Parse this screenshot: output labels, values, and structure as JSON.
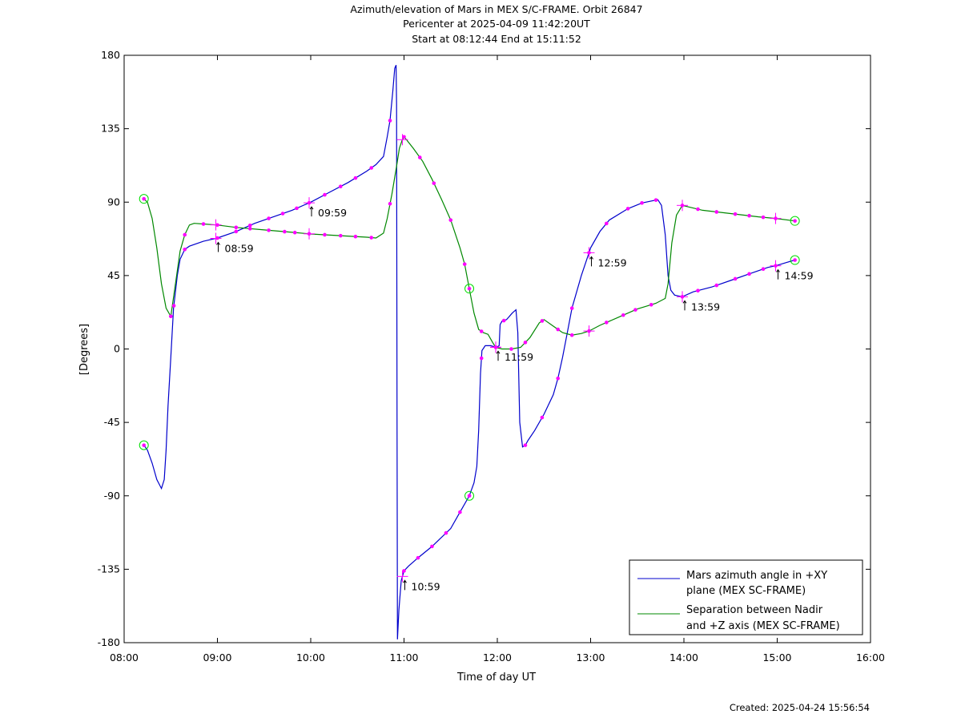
{
  "title_lines": [
    "Azimuth/elevation of Mars in MEX S/C-FRAME.  Orbit 26847",
    "Pericenter at 2025-04-09 11:42:20UT",
    "Start at 08:12:44 End at 15:11:52"
  ],
  "footer": "Created: 2025-04-24 15:56:54",
  "colors": {
    "azimuth": "#0000cc",
    "separation": "#008800",
    "markers": "#ff00ff",
    "endpoints": "#00dd00"
  },
  "chart_data": {
    "type": "line",
    "xlabel": "Time of day UT",
    "ylabel": "[Degrees]",
    "x_unit": "hours of day UT",
    "xlim": [
      8,
      16
    ],
    "ylim": [
      -180,
      180
    ],
    "x_ticks": [
      {
        "v": 8,
        "label": "08:00"
      },
      {
        "v": 9,
        "label": "09:00"
      },
      {
        "v": 10,
        "label": "10:00"
      },
      {
        "v": 11,
        "label": "11:00"
      },
      {
        "v": 12,
        "label": "12:00"
      },
      {
        "v": 13,
        "label": "13:00"
      },
      {
        "v": 14,
        "label": "14:00"
      },
      {
        "v": 15,
        "label": "15:00"
      },
      {
        "v": 16,
        "label": "16:00"
      }
    ],
    "y_ticks": [
      180,
      135,
      90,
      45,
      0,
      -45,
      -90,
      -135,
      -180
    ],
    "legend_position": "bottom-right",
    "series": [
      {
        "name": "Mars azimuth angle in +XY plane (MEX SC-FRAME)",
        "legend_lines": [
          "Mars azimuth angle in +XY",
          "plane (MEX SC-FRAME)"
        ],
        "color": "#0000cc",
        "points": [
          [
            8.212,
            -59
          ],
          [
            8.25,
            -62
          ],
          [
            8.3,
            -70
          ],
          [
            8.35,
            -80
          ],
          [
            8.4,
            -85.5
          ],
          [
            8.43,
            -80
          ],
          [
            8.45,
            -62
          ],
          [
            8.47,
            -35
          ],
          [
            8.5,
            -5
          ],
          [
            8.53,
            25
          ],
          [
            8.57,
            45
          ],
          [
            8.6,
            55
          ],
          [
            8.65,
            61
          ],
          [
            8.7,
            63
          ],
          [
            8.85,
            66
          ],
          [
            9.0,
            68
          ],
          [
            9.2,
            72
          ],
          [
            9.4,
            77
          ],
          [
            9.6,
            81
          ],
          [
            9.8,
            85
          ],
          [
            10.0,
            90
          ],
          [
            10.2,
            96
          ],
          [
            10.4,
            102
          ],
          [
            10.6,
            109
          ],
          [
            10.7,
            113
          ],
          [
            10.78,
            118
          ],
          [
            10.82,
            130
          ],
          [
            10.85,
            140
          ],
          [
            10.88,
            158
          ],
          [
            10.9,
            172
          ],
          [
            10.915,
            174
          ],
          [
            10.92,
            150
          ],
          [
            10.925,
            -50
          ],
          [
            10.93,
            -178
          ],
          [
            10.945,
            -160
          ],
          [
            10.97,
            -142
          ],
          [
            11.0,
            -136
          ],
          [
            11.05,
            -133
          ],
          [
            11.15,
            -128
          ],
          [
            11.3,
            -121
          ],
          [
            11.5,
            -110
          ],
          [
            11.6,
            -100
          ],
          [
            11.7,
            -90
          ],
          [
            11.75,
            -82
          ],
          [
            11.78,
            -72
          ],
          [
            11.8,
            -50
          ],
          [
            11.82,
            -15
          ],
          [
            11.835,
            -1
          ],
          [
            11.87,
            2
          ],
          [
            11.93,
            2
          ],
          [
            11.99,
            1
          ],
          [
            12.02,
            2
          ],
          [
            12.03,
            15
          ],
          [
            12.05,
            17
          ],
          [
            12.1,
            18
          ],
          [
            12.16,
            22
          ],
          [
            12.2,
            24
          ],
          [
            12.22,
            10
          ],
          [
            12.24,
            -45
          ],
          [
            12.27,
            -60
          ],
          [
            12.3,
            -59
          ],
          [
            12.33,
            -56
          ],
          [
            12.4,
            -50
          ],
          [
            12.5,
            -40
          ],
          [
            12.6,
            -28
          ],
          [
            12.65,
            -18
          ],
          [
            12.7,
            -5
          ],
          [
            12.75,
            10
          ],
          [
            12.8,
            25
          ],
          [
            12.9,
            45
          ],
          [
            12.983,
            59
          ],
          [
            13.0,
            62
          ],
          [
            13.1,
            72
          ],
          [
            13.2,
            79
          ],
          [
            13.4,
            86
          ],
          [
            13.55,
            89.5
          ],
          [
            13.72,
            91.5
          ],
          [
            13.76,
            88
          ],
          [
            13.8,
            70
          ],
          [
            13.83,
            45
          ],
          [
            13.86,
            36
          ],
          [
            13.9,
            33
          ],
          [
            13.983,
            32
          ],
          [
            14.1,
            35
          ],
          [
            14.3,
            38
          ],
          [
            14.5,
            42
          ],
          [
            14.7,
            46
          ],
          [
            14.9,
            50
          ],
          [
            14.983,
            51
          ],
          [
            15.1,
            53
          ],
          [
            15.19,
            54.5
          ]
        ],
        "markers_x": [
          8.212,
          8.533,
          8.65,
          9.0,
          9.2,
          9.35,
          9.55,
          9.7,
          9.85,
          9.983,
          10.15,
          10.32,
          10.48,
          10.65,
          10.85,
          11.0,
          11.15,
          11.3,
          11.45,
          11.6,
          11.7,
          11.83,
          11.983,
          12.07,
          12.3,
          12.48,
          12.65,
          12.8,
          12.983,
          13.17,
          13.4,
          13.55,
          13.7,
          13.983,
          14.15,
          14.35,
          14.55,
          14.7,
          14.85,
          14.983,
          15.19
        ],
        "time_marks": [
          {
            "x": 8.983,
            "label": "08:59"
          },
          {
            "x": 9.983,
            "label": "09:59"
          },
          {
            "x": 10.983,
            "label": "10:59"
          },
          {
            "x": 11.983,
            "label": "11:59"
          },
          {
            "x": 12.983,
            "label": "12:59"
          },
          {
            "x": 13.983,
            "label": "13:59"
          },
          {
            "x": 14.983,
            "label": "14:59"
          }
        ],
        "endpoints": [
          [
            8.212,
            -59
          ],
          [
            11.7,
            -90
          ],
          [
            15.19,
            54.5
          ]
        ]
      },
      {
        "name": "Separation between Nadir and +Z axis (MEX SC-FRAME)",
        "legend_lines": [
          "Separation between Nadir",
          "and +Z axis (MEX SC-FRAME)"
        ],
        "color": "#008800",
        "points": [
          [
            8.212,
            92
          ],
          [
            8.25,
            90
          ],
          [
            8.3,
            80
          ],
          [
            8.35,
            62
          ],
          [
            8.4,
            40
          ],
          [
            8.45,
            25
          ],
          [
            8.5,
            20
          ],
          [
            8.55,
            40
          ],
          [
            8.6,
            60
          ],
          [
            8.65,
            70
          ],
          [
            8.7,
            76
          ],
          [
            8.75,
            77
          ],
          [
            9.0,
            76
          ],
          [
            9.2,
            74.5
          ],
          [
            9.5,
            73
          ],
          [
            9.8,
            71.5
          ],
          [
            10.0,
            70.5
          ],
          [
            10.3,
            69.5
          ],
          [
            10.6,
            68.5
          ],
          [
            10.7,
            68
          ],
          [
            10.78,
            71
          ],
          [
            10.82,
            80
          ],
          [
            10.87,
            95
          ],
          [
            10.92,
            112
          ],
          [
            10.95,
            123
          ],
          [
            10.98,
            128
          ],
          [
            11.0,
            130
          ],
          [
            11.03,
            128
          ],
          [
            11.1,
            123
          ],
          [
            11.2,
            115
          ],
          [
            11.3,
            104
          ],
          [
            11.4,
            92
          ],
          [
            11.5,
            79
          ],
          [
            11.6,
            62
          ],
          [
            11.65,
            52
          ],
          [
            11.7,
            37
          ],
          [
            11.75,
            22
          ],
          [
            11.8,
            12
          ],
          [
            11.85,
            10
          ],
          [
            11.9,
            9
          ],
          [
            11.95,
            4
          ],
          [
            11.983,
            1
          ],
          [
            12.05,
            0
          ],
          [
            12.15,
            0
          ],
          [
            12.25,
            1
          ],
          [
            12.35,
            7
          ],
          [
            12.45,
            16
          ],
          [
            12.5,
            18
          ],
          [
            12.6,
            14
          ],
          [
            12.7,
            10
          ],
          [
            12.8,
            8.5
          ],
          [
            12.9,
            9.5
          ],
          [
            12.983,
            11
          ],
          [
            13.1,
            14.5
          ],
          [
            13.3,
            19.5
          ],
          [
            13.5,
            24.5
          ],
          [
            13.7,
            28
          ],
          [
            13.8,
            31
          ],
          [
            13.83,
            40
          ],
          [
            13.87,
            65
          ],
          [
            13.92,
            82
          ],
          [
            13.983,
            88
          ],
          [
            14.2,
            85
          ],
          [
            14.5,
            83
          ],
          [
            14.8,
            81
          ],
          [
            14.983,
            80
          ],
          [
            15.19,
            78.5
          ]
        ],
        "markers_x": [
          8.212,
          8.5,
          8.65,
          8.85,
          9.0,
          9.2,
          9.35,
          9.55,
          9.72,
          9.83,
          9.983,
          10.15,
          10.32,
          10.48,
          10.65,
          10.85,
          11.0,
          11.17,
          11.32,
          11.5,
          11.65,
          11.7,
          11.83,
          11.983,
          12.15,
          12.3,
          12.48,
          12.65,
          12.8,
          12.983,
          13.17,
          13.35,
          13.48,
          13.65,
          13.983,
          14.15,
          14.35,
          14.55,
          14.7,
          14.85,
          14.983,
          15.19
        ],
        "time_marks": [
          {
            "x": 8.983
          },
          {
            "x": 9.983
          },
          {
            "x": 10.983
          },
          {
            "x": 11.983
          },
          {
            "x": 12.983
          },
          {
            "x": 13.983
          },
          {
            "x": 14.983
          }
        ],
        "endpoints": [
          [
            8.212,
            92
          ],
          [
            11.7,
            37
          ],
          [
            15.19,
            78.5
          ]
        ]
      }
    ]
  }
}
